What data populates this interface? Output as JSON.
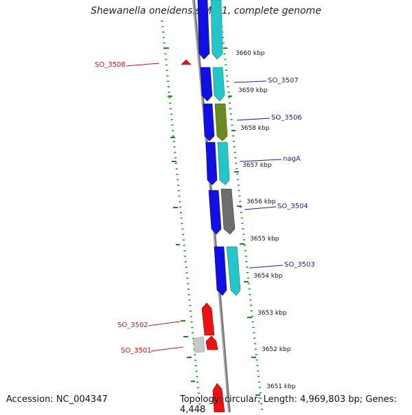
{
  "title": "Shewanella oneidensis MR-1, complete genome",
  "footer": {
    "accession": "Accession: NC_004347",
    "topology": "Topology: circular; Length: 4,969,803 bp; Genes: 4,448"
  },
  "colors": {
    "forward_cds": "#1010e6",
    "cog_cyan": "#22c8c8",
    "cog_olive": "#6b8a1e",
    "cog_gray": "#6e6e6e",
    "reverse_cds": "#ee1111",
    "light_gray": "#c8c8c8",
    "backbone": "#7a7a7a",
    "gc_dots": "#1a8a1a",
    "label_blue": "#1a1aaa",
    "label_red": "#cc1111"
  },
  "scale_labels": [
    "3660 kbp",
    "3659 kbp",
    "3658 kbp",
    "3657 kbp",
    "3656 kbp",
    "3655 kbp",
    "3654 kbp",
    "3653 kbp",
    "3652 kbp",
    "3651 kbp"
  ],
  "gene_labels": {
    "so3508": "SO_3508",
    "so3507": "SO_3507",
    "so3506": "SO_3506",
    "naga": "nagA",
    "so3504": "SO_3504",
    "so3503": "SO_3503",
    "so3502": "SO_3502",
    "so3501": "SO_3501"
  }
}
